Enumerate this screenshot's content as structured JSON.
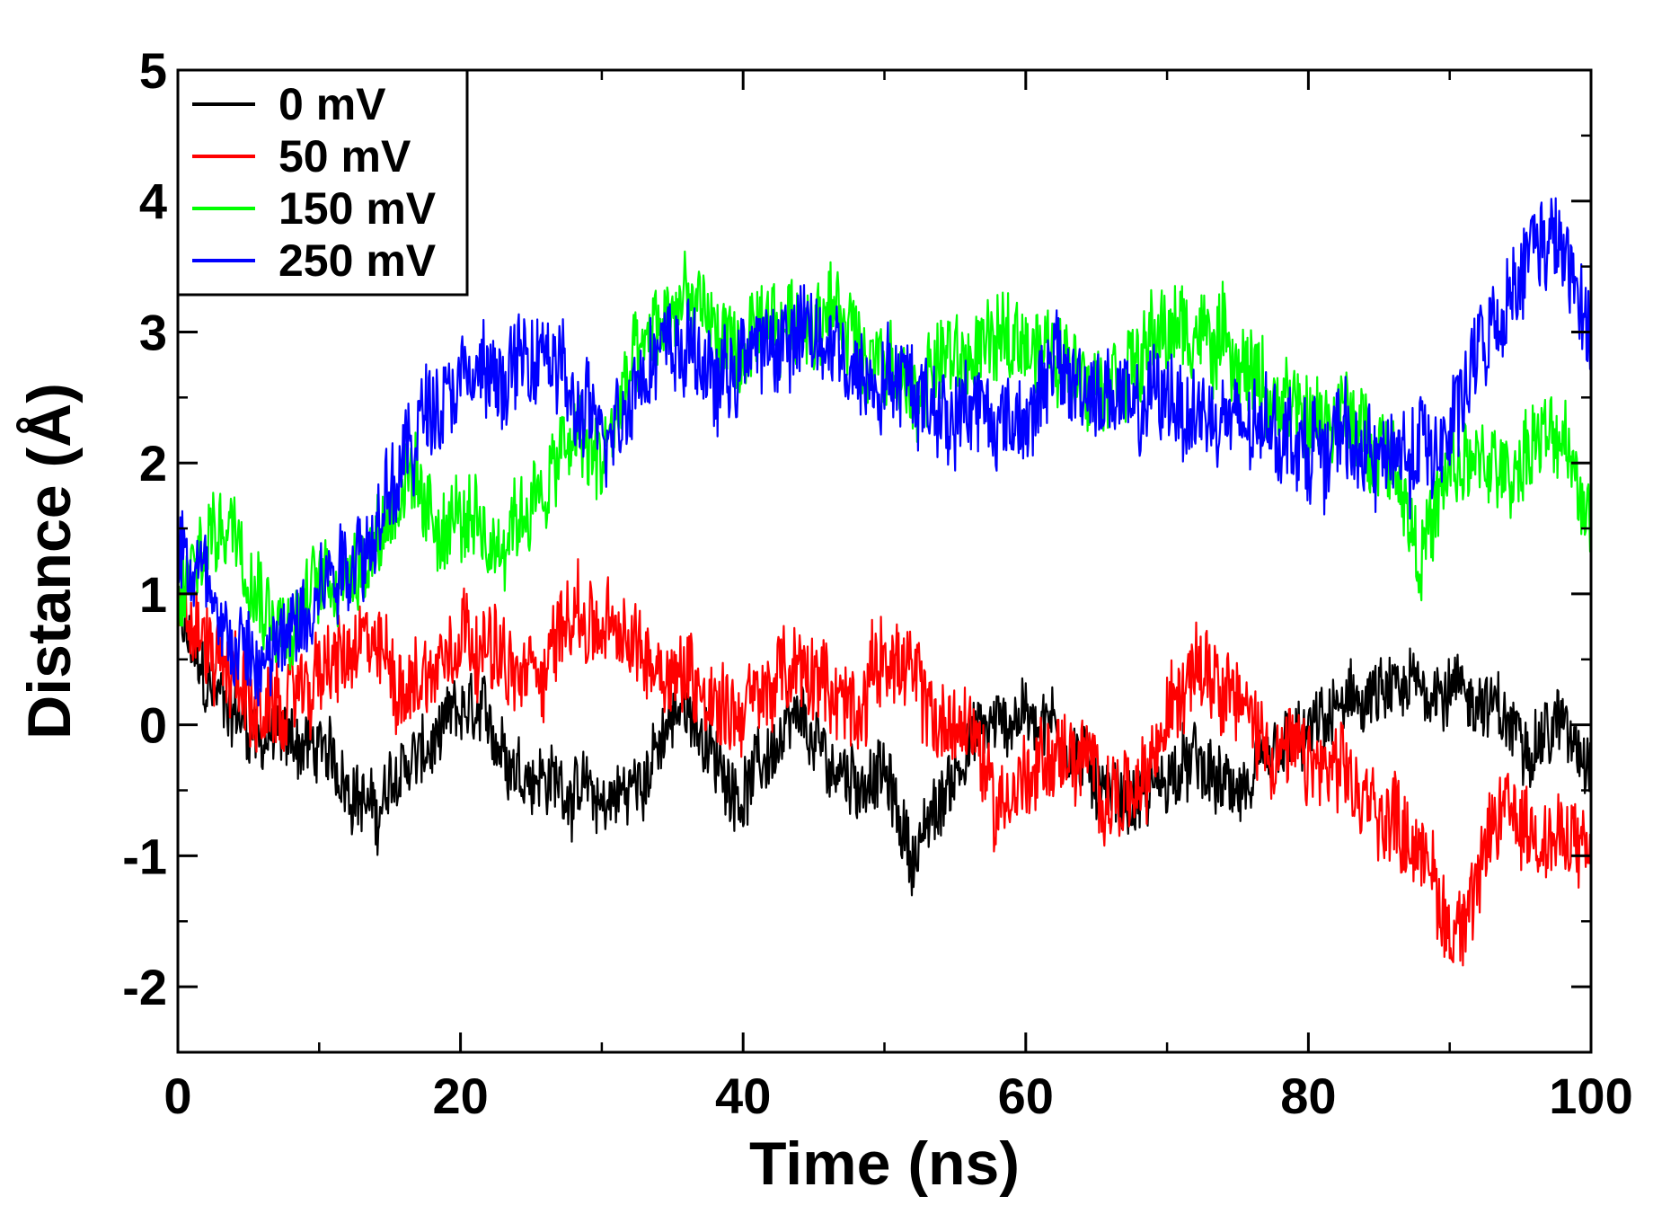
{
  "chart_data": {
    "type": "line",
    "title": "",
    "xlabel": "Time (ns)",
    "ylabel": "Distance (Å)",
    "xlim": [
      0,
      100
    ],
    "ylim": [
      -2.5,
      5
    ],
    "xticks": [
      0,
      20,
      40,
      60,
      80,
      100
    ],
    "xtick_labels": [
      "0",
      "20",
      "40",
      "60",
      "80",
      "100"
    ],
    "yticks": [
      -2,
      -1,
      0,
      1,
      2,
      3,
      4,
      5
    ],
    "ytick_labels": [
      "-2",
      "-1",
      "0",
      "1",
      "2",
      "3",
      "4",
      "5"
    ],
    "grid": false,
    "legend_position": "top-left",
    "x": [
      0,
      2,
      4,
      6,
      8,
      10,
      12,
      14,
      16,
      18,
      20,
      22,
      24,
      26,
      28,
      30,
      32,
      34,
      36,
      38,
      40,
      42,
      44,
      46,
      48,
      50,
      52,
      54,
      56,
      58,
      60,
      62,
      64,
      66,
      68,
      70,
      72,
      74,
      76,
      78,
      80,
      82,
      84,
      86,
      88,
      90,
      92,
      94,
      96,
      98,
      100
    ],
    "series": [
      {
        "name": "0 mV",
        "color": "#000000",
        "noise": 0.22,
        "values": [
          0.8,
          0.3,
          0.1,
          -0.1,
          -0.1,
          -0.2,
          -0.4,
          -0.7,
          -0.3,
          -0.2,
          0.1,
          0.0,
          -0.3,
          -0.4,
          -0.5,
          -0.6,
          -0.5,
          -0.2,
          0.2,
          -0.3,
          -0.5,
          -0.2,
          0.0,
          -0.3,
          -0.4,
          -0.4,
          -1.0,
          -0.6,
          -0.1,
          0.0,
          0.1,
          0.0,
          -0.3,
          -0.5,
          -0.6,
          -0.4,
          -0.3,
          -0.5,
          -0.5,
          -0.2,
          -0.1,
          0.1,
          0.2,
          0.2,
          0.3,
          0.3,
          0.2,
          0.0,
          -0.1,
          0.0,
          -0.2
        ]
      },
      {
        "name": "50 mV",
        "color": "#ff0000",
        "noise": 0.28,
        "values": [
          0.9,
          0.6,
          0.4,
          0.0,
          0.2,
          0.4,
          0.5,
          0.6,
          0.3,
          0.4,
          0.8,
          0.6,
          0.3,
          0.5,
          0.9,
          0.7,
          0.6,
          0.5,
          0.4,
          0.2,
          0.1,
          0.3,
          0.4,
          0.3,
          0.1,
          0.6,
          0.3,
          0.0,
          0.0,
          -0.6,
          -0.4,
          -0.2,
          -0.3,
          -0.5,
          -0.6,
          0.0,
          0.6,
          0.4,
          0.0,
          -0.2,
          -0.3,
          -0.4,
          -0.6,
          -0.7,
          -0.9,
          -1.6,
          -1.2,
          -0.6,
          -0.8,
          -0.9,
          -1.0
        ]
      },
      {
        "name": "150 mV",
        "color": "#00ff00",
        "noise": 0.28,
        "values": [
          0.9,
          1.4,
          1.6,
          1.0,
          0.7,
          1.1,
          1.2,
          1.4,
          1.9,
          1.5,
          1.6,
          1.3,
          1.6,
          1.8,
          2.2,
          2.0,
          2.7,
          3.0,
          3.3,
          3.0,
          2.8,
          3.0,
          3.1,
          3.2,
          3.0,
          2.7,
          2.5,
          2.8,
          2.8,
          2.9,
          3.0,
          2.8,
          2.7,
          2.7,
          2.8,
          3.0,
          3.0,
          2.9,
          2.7,
          2.4,
          2.3,
          2.4,
          2.2,
          2.1,
          1.3,
          1.9,
          2.0,
          1.9,
          2.2,
          2.1,
          1.6
        ]
      },
      {
        "name": "250 mV",
        "color": "#0000ff",
        "noise": 0.3,
        "values": [
          1.4,
          1.1,
          0.6,
          0.4,
          0.7,
          1.1,
          1.3,
          1.5,
          2.0,
          2.5,
          2.7,
          2.6,
          2.7,
          2.9,
          2.4,
          2.2,
          2.6,
          2.9,
          2.9,
          2.6,
          2.8,
          2.9,
          3.0,
          2.9,
          2.7,
          2.7,
          2.6,
          2.4,
          2.5,
          2.3,
          2.4,
          2.7,
          2.6,
          2.5,
          2.4,
          2.5,
          2.4,
          2.3,
          2.2,
          2.3,
          2.1,
          2.2,
          2.1,
          2.0,
          2.1,
          2.3,
          2.8,
          3.1,
          3.7,
          3.6,
          2.9
        ]
      }
    ]
  }
}
